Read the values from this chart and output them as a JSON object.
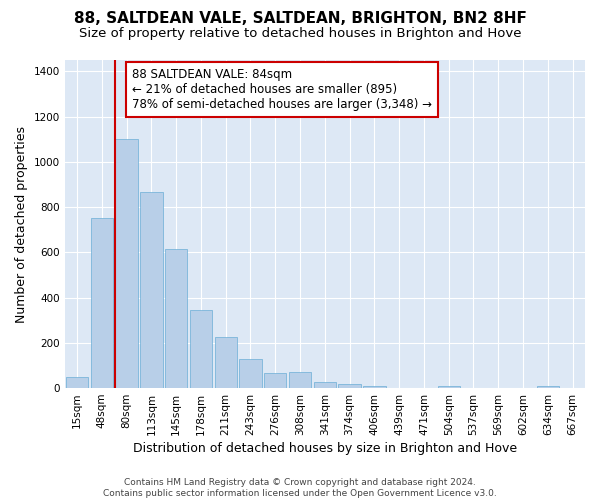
{
  "title": "88, SALTDEAN VALE, SALTDEAN, BRIGHTON, BN2 8HF",
  "subtitle": "Size of property relative to detached houses in Brighton and Hove",
  "xlabel": "Distribution of detached houses by size in Brighton and Hove",
  "ylabel": "Number of detached properties",
  "footer_line1": "Contains HM Land Registry data © Crown copyright and database right 2024.",
  "footer_line2": "Contains public sector information licensed under the Open Government Licence v3.0.",
  "categories": [
    "15sqm",
    "48sqm",
    "80sqm",
    "113sqm",
    "145sqm",
    "178sqm",
    "211sqm",
    "243sqm",
    "276sqm",
    "308sqm",
    "341sqm",
    "374sqm",
    "406sqm",
    "439sqm",
    "471sqm",
    "504sqm",
    "537sqm",
    "569sqm",
    "602sqm",
    "634sqm",
    "667sqm"
  ],
  "bar_heights": [
    50,
    750,
    1100,
    865,
    615,
    345,
    225,
    130,
    65,
    70,
    25,
    20,
    10,
    0,
    0,
    10,
    0,
    0,
    0,
    10,
    0
  ],
  "bar_color": "#b8cfe8",
  "bar_edgecolor": "#6baed6",
  "bg_color": "#dde8f5",
  "grid_color": "#ffffff",
  "annotation_text_line1": "88 SALTDEAN VALE: 84sqm",
  "annotation_text_line2": "← 21% of detached houses are smaller (895)",
  "annotation_text_line3": "78% of semi-detached houses are larger (3,348) →",
  "annotation_box_facecolor": "#ffffff",
  "annotation_border_color": "#cc0000",
  "vline_color": "#cc0000",
  "vline_x": 2.0,
  "ylim_max": 1450,
  "title_fontsize": 11,
  "subtitle_fontsize": 9.5,
  "tick_fontsize": 7.5,
  "ylabel_fontsize": 9,
  "xlabel_fontsize": 9,
  "footer_fontsize": 6.5,
  "ann_fontsize": 8.5
}
